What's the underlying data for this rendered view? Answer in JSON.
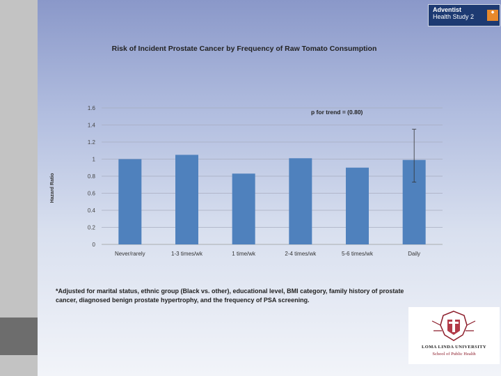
{
  "badge": {
    "title": "Adventist",
    "subtitle": "Health Study 2",
    "icon_name": "ahs2-logo-icon"
  },
  "chart_data": {
    "type": "bar",
    "title": "Risk of Incident Prostate Cancer by Frequency of Raw Tomato Consumption",
    "xlabel": "",
    "ylabel": "Hazard Ratio",
    "categories": [
      "Never/rarely",
      "1-3 times/wk",
      "1 time/wk",
      "2-4 times/wk",
      "5-6 times/wk",
      "Daily"
    ],
    "values": [
      1.0,
      1.05,
      0.83,
      1.01,
      0.9,
      0.99
    ],
    "error_bar": {
      "category_index": 5,
      "low": 0.73,
      "high": 1.35
    },
    "ylim": [
      0,
      1.6
    ],
    "yticks": [
      "0",
      "0.2",
      "0.4",
      "0.6",
      "0.8",
      "1",
      "1.2",
      "1.4",
      "1.6"
    ],
    "grid": true,
    "bar_color": "#4f81bd",
    "annotation": "p for trend = (0.80)"
  },
  "footnote": "*Adjusted for marital status, ethnic group (Black vs. other), educational level, BMI category, family history of prostate cancer, diagnosed benign prostate hypertrophy, and the frequency of PSA screening.",
  "logo": {
    "name": "LOMA LINDA UNIVERSITY",
    "school": "School of Public Health",
    "icon_name": "university-seal-icon"
  }
}
